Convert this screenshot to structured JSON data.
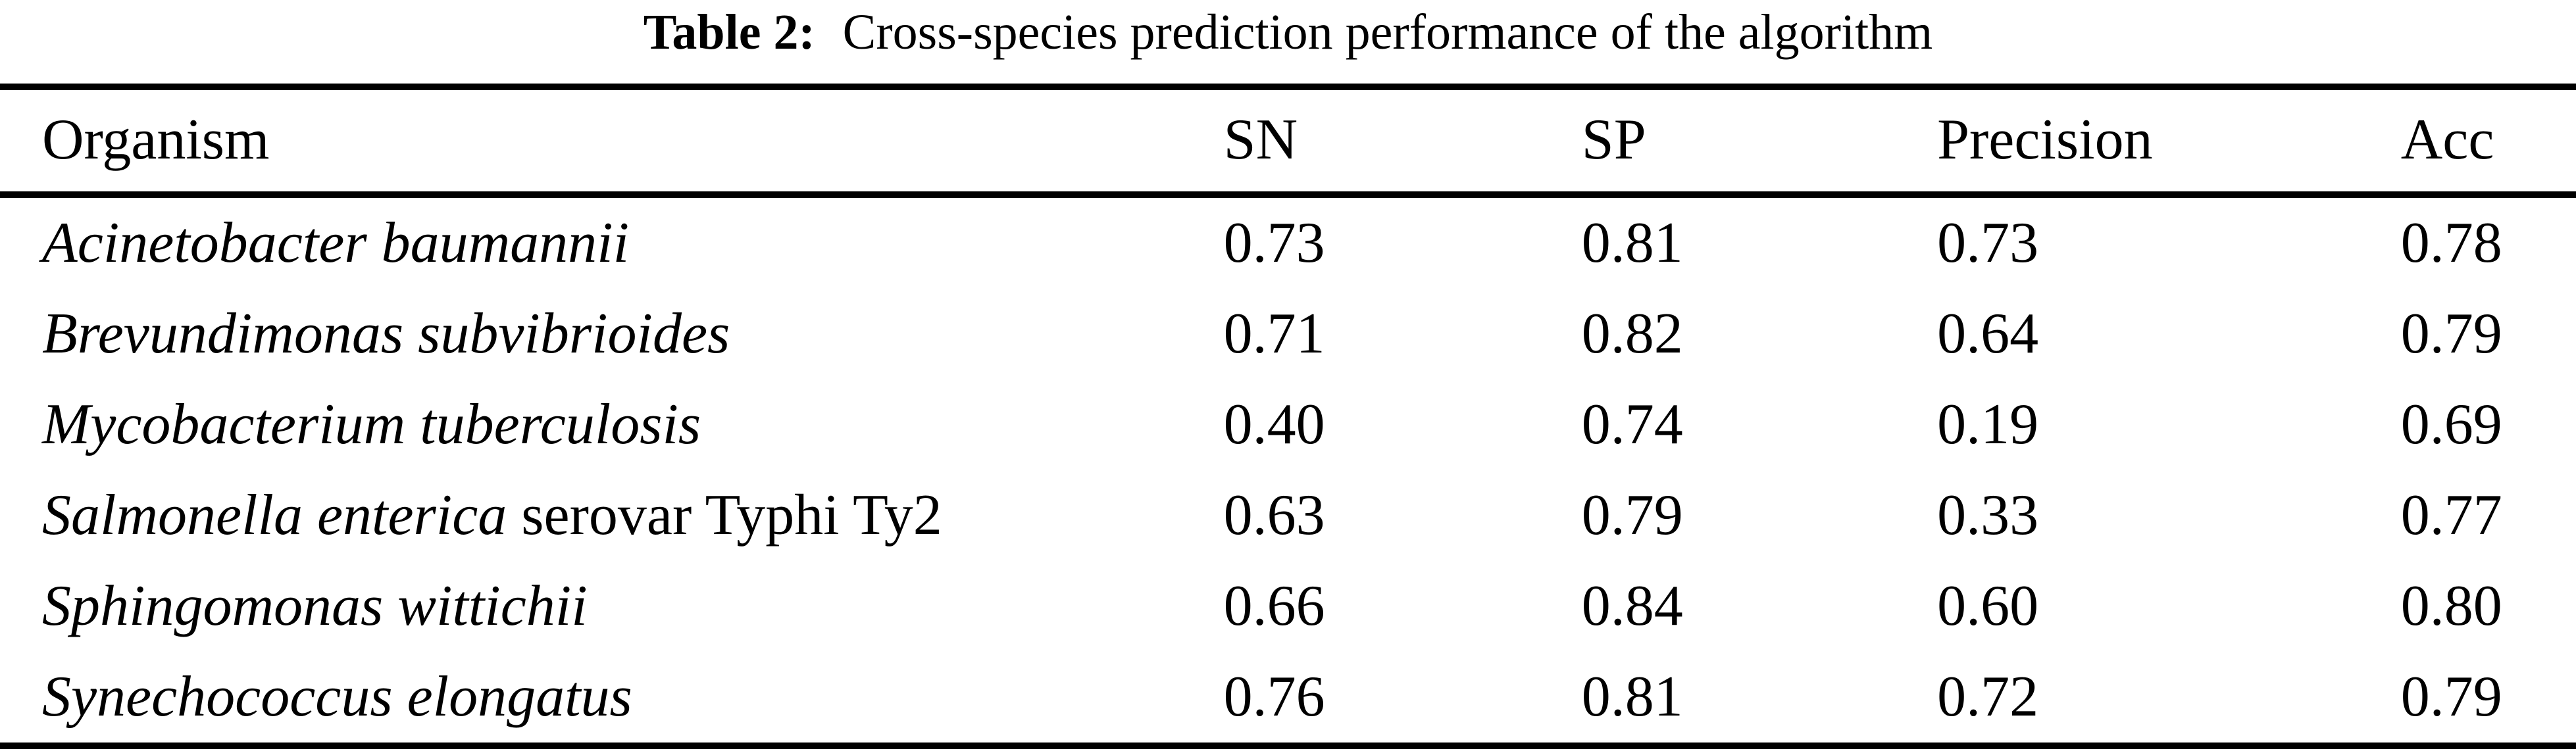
{
  "page": {
    "background_color": "#ffffff",
    "text_color": "#000000"
  },
  "table": {
    "caption": {
      "label": "Table 2:",
      "title": "Cross-species prediction performance of the algorithm"
    },
    "columns": [
      "Organism",
      "SN",
      "SP",
      "Precision",
      "Acc"
    ],
    "rows": [
      {
        "organism_italic": "Acinetobacter baumannii",
        "organism_roman": "",
        "sn": "0.73",
        "sp": "0.81",
        "precision": "0.73",
        "acc": "0.78"
      },
      {
        "organism_italic": "Brevundimonas subvibrioides",
        "organism_roman": "",
        "sn": "0.71",
        "sp": "0.82",
        "precision": "0.64",
        "acc": "0.79"
      },
      {
        "organism_italic": "Mycobacterium tuberculosis",
        "organism_roman": "",
        "sn": "0.40",
        "sp": "0.74",
        "precision": "0.19",
        "acc": "0.69"
      },
      {
        "organism_italic": "Salmonella enterica",
        "organism_roman": " serovar Typhi Ty2",
        "sn": "0.63",
        "sp": "0.79",
        "precision": "0.33",
        "acc": "0.77"
      },
      {
        "organism_italic": "Sphingomonas wittichii",
        "organism_roman": "",
        "sn": "0.66",
        "sp": "0.84",
        "precision": "0.60",
        "acc": "0.80"
      },
      {
        "organism_italic": "Synechococcus elongatus",
        "organism_roman": "",
        "sn": "0.76",
        "sp": "0.81",
        "precision": "0.72",
        "acc": "0.79"
      }
    ]
  }
}
